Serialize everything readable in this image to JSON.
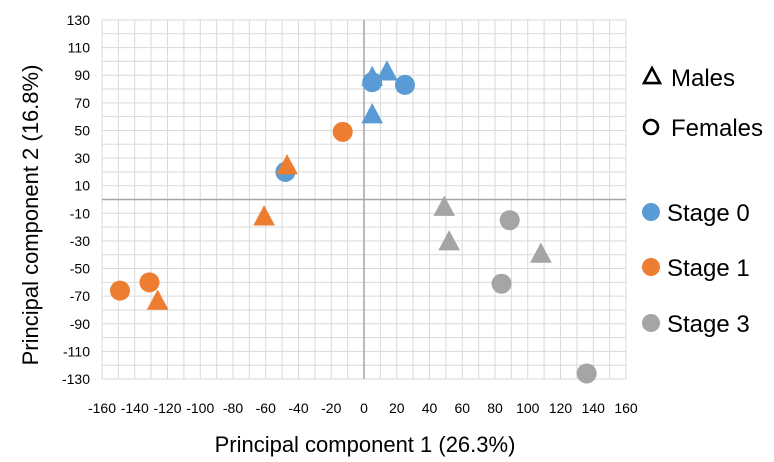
{
  "chart_data": {
    "type": "scatter",
    "xlabel": "Principal component 1 (26.3%)",
    "ylabel": "Principal component 2 (16.8%)",
    "xlim": [
      -160,
      160
    ],
    "ylim": [
      -130,
      130
    ],
    "x_ticks": [
      -160,
      -140,
      -120,
      -100,
      -80,
      -60,
      -40,
      -20,
      0,
      20,
      40,
      60,
      80,
      100,
      120,
      140,
      160
    ],
    "y_ticks": [
      130,
      110,
      90,
      70,
      50,
      30,
      10,
      -10,
      -30,
      -50,
      -70,
      -90,
      -110,
      -130
    ],
    "grid": true,
    "legend": {
      "placement": "right",
      "shapes": [
        {
          "label": "Males",
          "marker": "triangle"
        },
        {
          "label": "Females",
          "marker": "circle"
        }
      ],
      "stages": [
        {
          "label": "Stage 0",
          "color": "#5B9BD5"
        },
        {
          "label": "Stage 1",
          "color": "#ED7D31"
        },
        {
          "label": "Stage 3",
          "color": "#A5A5A5"
        }
      ]
    },
    "series": [
      {
        "name": "Stage 0",
        "color": "#5B9BD5",
        "points": [
          {
            "x": 5,
            "y": 88,
            "marker": "triangle"
          },
          {
            "x": 14,
            "y": 92,
            "marker": "triangle"
          },
          {
            "x": 5,
            "y": 61,
            "marker": "triangle"
          },
          {
            "x": 5,
            "y": 85,
            "marker": "circle"
          },
          {
            "x": 25,
            "y": 83,
            "marker": "circle"
          },
          {
            "x": -48,
            "y": 20,
            "marker": "circle"
          }
        ]
      },
      {
        "name": "Stage 1",
        "color": "#ED7D31",
        "points": [
          {
            "x": -47,
            "y": 24,
            "marker": "triangle"
          },
          {
            "x": -61,
            "y": -13,
            "marker": "triangle"
          },
          {
            "x": -126,
            "y": -74,
            "marker": "triangle"
          },
          {
            "x": -13,
            "y": 49,
            "marker": "circle"
          },
          {
            "x": -131,
            "y": -60,
            "marker": "circle"
          },
          {
            "x": -149,
            "y": -66,
            "marker": "circle"
          }
        ]
      },
      {
        "name": "Stage 3",
        "color": "#A5A5A5",
        "points": [
          {
            "x": 49,
            "y": -6,
            "marker": "triangle"
          },
          {
            "x": 52,
            "y": -31,
            "marker": "triangle"
          },
          {
            "x": 108,
            "y": -40,
            "marker": "triangle"
          },
          {
            "x": 89,
            "y": -15,
            "marker": "circle"
          },
          {
            "x": 84,
            "y": -61,
            "marker": "circle"
          },
          {
            "x": 136,
            "y": -126,
            "marker": "circle"
          }
        ]
      }
    ]
  }
}
